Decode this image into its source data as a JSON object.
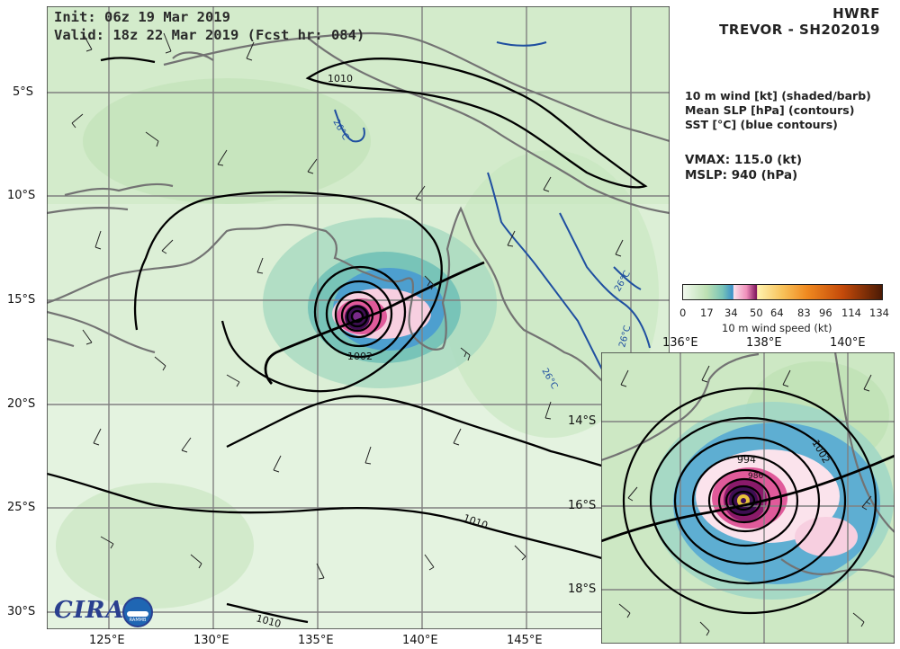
{
  "header": {
    "model": "HWRF",
    "storm": "TREVOR - SH202019"
  },
  "init": {
    "line1": "Init:   06z 19 Mar 2019",
    "line2": "Valid: 18z 22 Mar 2019 (Fcst hr: 084)"
  },
  "fields": [
    "10 m wind [kt] (shaded/barb)",
    "Mean SLP [hPa] (contours)",
    "SST [°C] (blue contours)"
  ],
  "stats": {
    "vmax": "VMAX: 115.0 (kt)",
    "mslp": "MSLP:  940 (hPa)"
  },
  "colorbar": {
    "ticks": [
      "0",
      "17",
      "34",
      "50",
      "64",
      "83",
      "96",
      "114",
      "134"
    ],
    "label": "10 m wind speed (kt)"
  },
  "main_map": {
    "lon_labels": [
      "125°E",
      "130°E",
      "135°E",
      "140°E",
      "145°E"
    ],
    "lat_labels": [
      "5°S",
      "10°S",
      "15°S",
      "20°S",
      "25°S",
      "30°S"
    ],
    "contour_labels": [
      "1010",
      "1010",
      "1010",
      "1002"
    ],
    "sst_labels": [
      "26°C",
      "26°C",
      "26°C",
      "26°C"
    ]
  },
  "inset_map": {
    "lon_labels": [
      "136°E",
      "138°E",
      "140°E"
    ],
    "lat_labels": [
      "14°S",
      "16°S",
      "18°S"
    ],
    "contour_labels": [
      "1002",
      "994",
      "986"
    ]
  },
  "logo": {
    "text": "CIRA",
    "sub": "RAMMB"
  },
  "colors": {
    "land_outline": "#737373",
    "sst_contour": "#1f4fa0",
    "slp_contour": "#000000",
    "grid": "#808080",
    "field_light_green": "#e4f2de",
    "field_green": "#bde0b3",
    "field_teal": "#78c4b8",
    "field_blue": "#3a8fc9",
    "field_pink": "#f4b8d0",
    "field_magenta": "#c2227a",
    "field_purple": "#3d0e52"
  }
}
